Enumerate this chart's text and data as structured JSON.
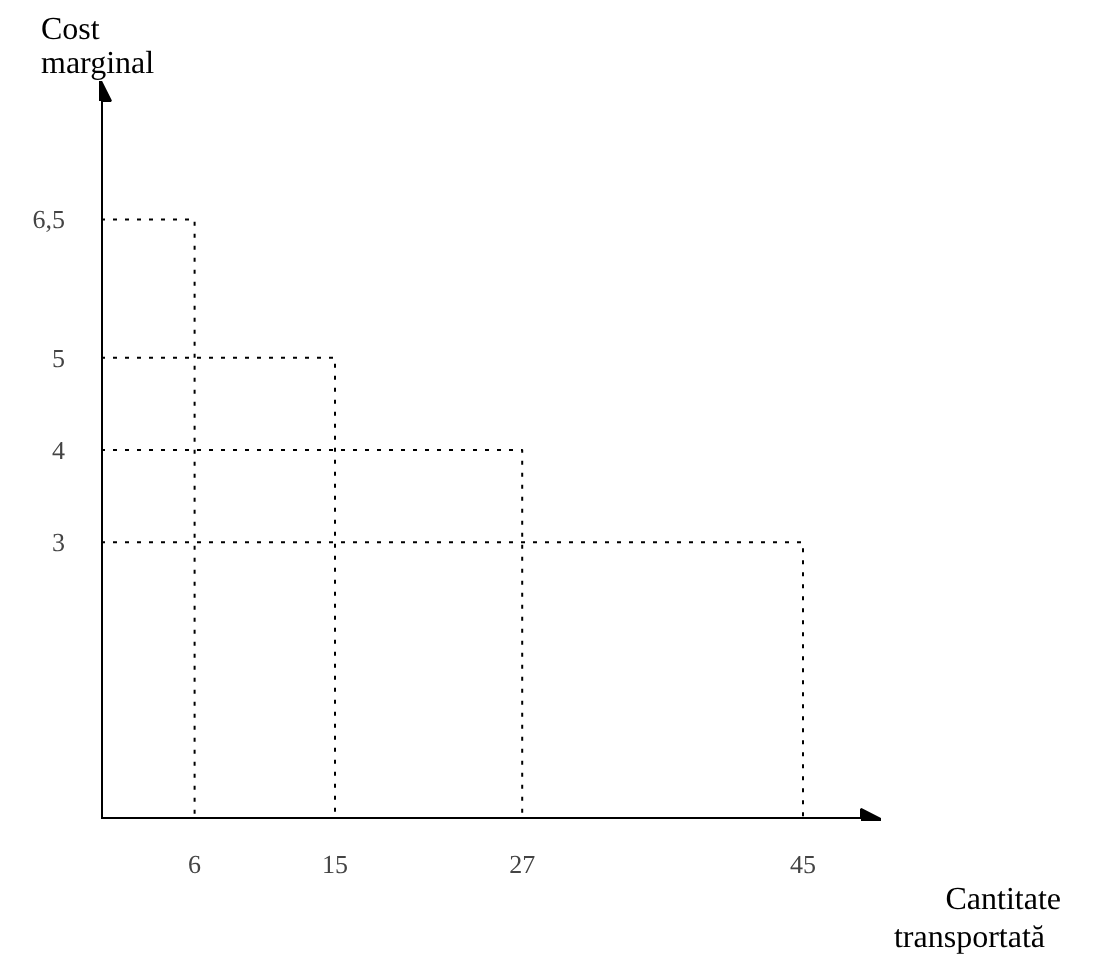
{
  "chart_data": {
    "type": "line",
    "xlabel": "Cantitate transportată",
    "ylabel": "Cost marginal",
    "series": [
      {
        "color": "#000000",
        "x": [
          0,
          6,
          6
        ],
        "values": [
          6.5,
          6.5,
          0
        ]
      },
      {
        "color": "#000000",
        "x": [
          0,
          15,
          15
        ],
        "values": [
          5,
          5,
          0
        ]
      },
      {
        "color": "#000000",
        "x": [
          0,
          27,
          27
        ],
        "values": [
          4,
          4,
          0
        ]
      },
      {
        "color": "#000000",
        "x": [
          0,
          45,
          45
        ],
        "values": [
          3,
          3,
          0
        ]
      }
    ],
    "line_style": "dotted",
    "marker": "none",
    "xlim": [
      0,
      50
    ],
    "ylim": [
      0,
      8
    ],
    "xticks": [
      6,
      15,
      27,
      45
    ],
    "yticks": [
      3,
      4,
      5,
      {
        "value": 6.5,
        "label": "6,5"
      }
    ],
    "grid": false
  }
}
